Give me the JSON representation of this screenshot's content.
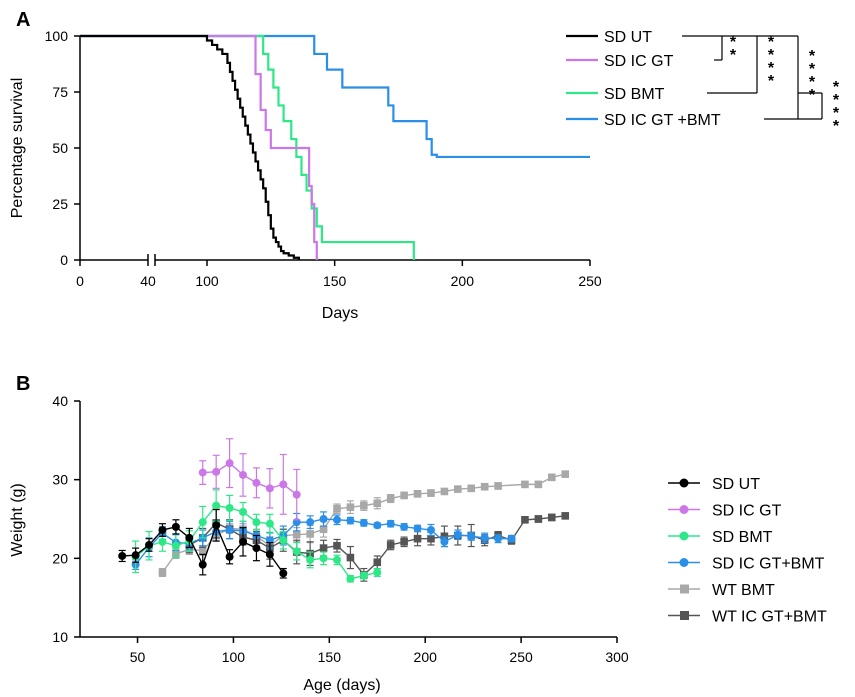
{
  "chart_data": [
    {
      "panel": "A",
      "type": "line",
      "step": true,
      "xlabel": "Days",
      "ylabel": "Percentage survival",
      "xlim": [
        0,
        250
      ],
      "ylim": [
        0,
        100
      ],
      "x_axis_break": [
        40,
        100
      ],
      "xticks": [
        {
          "v": 0,
          "label": "0"
        },
        {
          "v": 40,
          "label": "40"
        },
        {
          "v": 100,
          "label": "100"
        },
        {
          "v": 150,
          "label": "150"
        },
        {
          "v": 200,
          "label": "200"
        },
        {
          "v": 250,
          "label": "250"
        }
      ],
      "yticks": [
        {
          "v": 0,
          "label": "0"
        },
        {
          "v": 25,
          "label": "25"
        },
        {
          "v": 50,
          "label": "50"
        },
        {
          "v": 75,
          "label": "75"
        },
        {
          "v": 100,
          "label": "100"
        }
      ],
      "series": [
        {
          "name": "SD UT",
          "color": "#000000",
          "x": [
            0,
            100,
            102,
            104,
            106,
            108,
            109,
            110,
            111,
            112,
            113,
            114,
            115,
            116,
            117,
            118,
            119,
            120,
            121,
            122,
            123,
            124,
            125,
            126,
            127,
            128,
            129,
            130,
            132,
            134,
            136
          ],
          "y": [
            100,
            98,
            96,
            94,
            92,
            88,
            84,
            80,
            76,
            72,
            68,
            64,
            60,
            56,
            52,
            48,
            44,
            40,
            36,
            32,
            26,
            20,
            14,
            10,
            8,
            6,
            4,
            3,
            2,
            1,
            0
          ]
        },
        {
          "name": "SD IC GT",
          "color": "#cc77e8",
          "x": [
            0,
            119,
            121,
            123,
            125,
            139,
            140,
            141,
            142,
            143
          ],
          "y": [
            100,
            83,
            67,
            58,
            50,
            50,
            33,
            25,
            8,
            0
          ]
        },
        {
          "name": "SD BMT",
          "color": "#2ee888",
          "x": [
            0,
            122,
            124,
            126,
            128,
            130,
            133,
            135,
            137,
            139,
            141,
            143,
            145,
            147,
            181
          ],
          "y": [
            100,
            92,
            85,
            77,
            69,
            62,
            54,
            46,
            38,
            31,
            23,
            15,
            8,
            8,
            0
          ]
        },
        {
          "name": "SD IC GT +BMT",
          "color": "#2a8fe8",
          "x": [
            0,
            142,
            147,
            153,
            171,
            173,
            186,
            188,
            190,
            250
          ],
          "y": [
            100,
            92,
            85,
            77,
            69,
            62,
            54,
            47,
            46,
            46
          ]
        }
      ],
      "significance": [
        {
          "pair": [
            "SD UT",
            "SD IC GT"
          ],
          "label": "**"
        },
        {
          "pair": [
            "SD UT",
            "SD BMT"
          ],
          "label": "****"
        },
        {
          "pair": [
            "SD UT",
            "SD IC GT +BMT"
          ],
          "label": "****"
        },
        {
          "pair": [
            "SD BMT",
            "SD IC GT +BMT"
          ],
          "label": "****"
        }
      ]
    },
    {
      "panel": "B",
      "type": "line",
      "xlabel": "Age (days)",
      "ylabel": "Weight (g)",
      "xlim": [
        20,
        300
      ],
      "ylim": [
        10,
        40
      ],
      "xticks": [
        {
          "v": 50,
          "label": "50"
        },
        {
          "v": 100,
          "label": "100"
        },
        {
          "v": 150,
          "label": "150"
        },
        {
          "v": 200,
          "label": "200"
        },
        {
          "v": 250,
          "label": "250"
        },
        {
          "v": 300,
          "label": "300"
        }
      ],
      "yticks": [
        {
          "v": 10,
          "label": "10"
        },
        {
          "v": 20,
          "label": "20"
        },
        {
          "v": 30,
          "label": "30"
        },
        {
          "v": 40,
          "label": "40"
        }
      ],
      "series": [
        {
          "name": "SD UT",
          "color": "#000000",
          "marker": "circle",
          "x": [
            42,
            49,
            56,
            63,
            70,
            77,
            84,
            91,
            98,
            105,
            112,
            119,
            126
          ],
          "y": [
            20.3,
            20.4,
            21.7,
            23.6,
            24.0,
            22.6,
            19.2,
            24.2,
            20.2,
            22.1,
            21.3,
            20.5,
            18.1
          ],
          "err": [
            0.7,
            0.9,
            0.8,
            0.8,
            0.9,
            1.2,
            1.3,
            2.0,
            0.9,
            1.8,
            1.6,
            1.5,
            0.6
          ]
        },
        {
          "name": "SD IC GT",
          "color": "#cc77e8",
          "marker": "circle",
          "x": [
            84,
            91,
            98,
            105,
            112,
            119,
            126,
            133
          ],
          "y": [
            30.9,
            31.0,
            32.1,
            30.6,
            29.6,
            28.9,
            29.4,
            28.1
          ],
          "err": [
            1.5,
            2.1,
            3.1,
            2.7,
            1.9,
            2.5,
            3.8,
            3.2
          ]
        },
        {
          "name": "SD BMT",
          "color": "#2ee888",
          "marker": "circle",
          "x": [
            49,
            56,
            63,
            70,
            77,
            84,
            91,
            98,
            105,
            112,
            119,
            126,
            133,
            140,
            147,
            154,
            161,
            168,
            175
          ],
          "y": [
            20.2,
            21.6,
            22.1,
            21.6,
            22.2,
            24.6,
            26.7,
            26.4,
            25.9,
            24.6,
            24.4,
            22.3,
            20.9,
            19.8,
            20.0,
            19.8,
            17.4,
            17.8,
            18.2
          ],
          "err": [
            2.0,
            1.8,
            1.2,
            1.5,
            1.3,
            2.0,
            2.0,
            1.6,
            1.2,
            1.0,
            1.2,
            1.1,
            1.1,
            1.0,
            0.8,
            0.6,
            0.4,
            0.4,
            0.5
          ]
        },
        {
          "name": "SD IC GT+BMT",
          "color": "#2a8fe8",
          "marker": "circle",
          "x": [
            49,
            56,
            63,
            70,
            77,
            84,
            91,
            98,
            105,
            112,
            119,
            126,
            133,
            140,
            147,
            154,
            161,
            168,
            175,
            182,
            189,
            196,
            203,
            210,
            217,
            224,
            231,
            238,
            245
          ],
          "y": [
            19.2,
            21.4,
            23.2,
            22.0,
            21.9,
            22.6,
            23.4,
            23.6,
            23.5,
            22.9,
            22.3,
            22.9,
            24.6,
            24.6,
            25.0,
            24.9,
            24.8,
            24.5,
            24.2,
            24.4,
            24.0,
            23.8,
            23.6,
            22.1,
            23.0,
            22.8,
            22.6,
            22.5,
            22.5
          ],
          "err": [
            0.6,
            1.2,
            0.8,
            1.0,
            0.8,
            1.0,
            1.2,
            1.1,
            1.2,
            1.5,
            1.0,
            1.2,
            1.1,
            0.8,
            0.9,
            0.6,
            0.4,
            0.4,
            0.3,
            0.4,
            0.4,
            0.4,
            0.7,
            0.6,
            0.6,
            0.5,
            0.6,
            0.5,
            0.4
          ]
        },
        {
          "name": "WT BMT",
          "color": "#a8a8a8",
          "marker": "square",
          "x": [
            63,
            70,
            77,
            84,
            91,
            98,
            105,
            112,
            119,
            126,
            133,
            140,
            147,
            154,
            161,
            168,
            175,
            182,
            189,
            196,
            203,
            210,
            217,
            224,
            231,
            238,
            252,
            259,
            266,
            273
          ],
          "y": [
            18.2,
            20.6,
            21.1,
            21.0,
            22.9,
            23.8,
            23.7,
            22.8,
            21.6,
            22.9,
            23.0,
            23.1,
            23.7,
            26.3,
            26.5,
            26.7,
            27.0,
            27.6,
            28.0,
            28.2,
            28.3,
            28.5,
            28.8,
            28.9,
            29.1,
            29.2,
            29.4,
            29.4,
            30.3,
            30.7
          ],
          "err": [
            0.5,
            0.6,
            0.6,
            0.6,
            0.7,
            0.6,
            0.7,
            0.9,
            0.7,
            0.8,
            0.9,
            1.1,
            1.0,
            0.6,
            0.8,
            0.6,
            0.7,
            0.5,
            0.4,
            0.4,
            0.4,
            0.3,
            0.3,
            0.4,
            0.4,
            0.4,
            0.3,
            0.3,
            0.4,
            0.3
          ]
        },
        {
          "name": "WT IC GT+BMT",
          "color": "#555555",
          "marker": "square",
          "x": [
            77,
            84,
            91,
            98,
            105,
            112,
            119,
            126,
            133,
            140,
            147,
            154,
            161,
            168,
            175,
            182,
            189,
            196,
            203,
            210,
            217,
            224,
            231,
            238,
            245,
            252,
            259,
            266,
            273
          ],
          "y": [
            21.7,
            22.6,
            24.5,
            23.7,
            22.7,
            22.3,
            21.3,
            22.3,
            20.8,
            20.6,
            21.3,
            21.6,
            20.1,
            17.9,
            19.5,
            21.7,
            22.1,
            22.5,
            22.5,
            22.8,
            22.9,
            22.9,
            22.3,
            22.9,
            22.3,
            24.9,
            25.0,
            25.2,
            25.4
          ],
          "err": [
            1.0,
            1.2,
            1.9,
            1.2,
            1.0,
            1.1,
            1.4,
            1.4,
            1.5,
            1.5,
            1.0,
            0.8,
            1.4,
            0.8,
            0.8,
            0.6,
            0.6,
            0.9,
            0.8,
            1.3,
            1.2,
            1.4,
            0.7,
            0.5,
            0.5,
            0.4,
            0.4,
            0.4,
            0.3
          ]
        }
      ]
    }
  ]
}
